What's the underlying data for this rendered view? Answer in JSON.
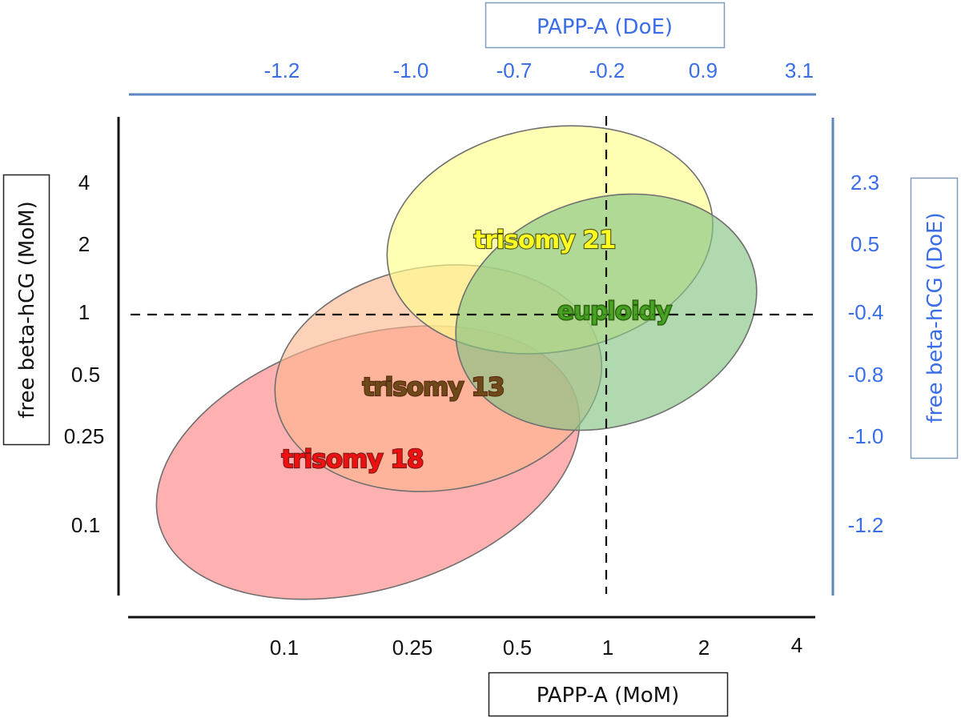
{
  "chart_data": {
    "type": "scatter",
    "subtype": "overlapping-ellipse-regions",
    "x_axis_bottom": {
      "title": "PAPP-A (MoM)",
      "scale": "log",
      "tick_labels": [
        "0.1",
        "0.25",
        "0.5",
        "1",
        "2",
        "4"
      ],
      "ticks": [
        0.1,
        0.25,
        0.5,
        1,
        2,
        4
      ]
    },
    "x_axis_top": {
      "title": "PAPP-A (DoE)",
      "tick_labels": [
        "-1.2",
        "-1.0",
        "-0.7",
        "-0.2",
        "0.9",
        "3.1"
      ]
    },
    "y_axis_left": {
      "title": "free beta-hCG (MoM)",
      "scale": "log",
      "tick_labels": [
        "4",
        "2",
        "1",
        "0.5",
        "0.25",
        "0.1"
      ],
      "ticks": [
        4,
        2,
        1,
        0.5,
        0.25,
        0.1
      ]
    },
    "y_axis_right": {
      "title": "free beta-hCG (DoE)",
      "tick_labels": [
        "2.3",
        "0.5",
        "-0.4",
        "-0.8",
        "-1.0",
        "-1.2"
      ]
    },
    "reference_lines": {
      "x": 1,
      "y": 1,
      "style": "dashed"
    },
    "regions": [
      {
        "name": "trisomy 18",
        "center_x_mom": 0.18,
        "center_y_mom": 0.19,
        "fill": "#ff8a8a",
        "label_color": "#ee1111",
        "label_outline": "#7a1a1a"
      },
      {
        "name": "trisomy 13",
        "center_x_mom": 0.29,
        "center_y_mom": 0.48,
        "fill": "#fdb48e",
        "label_color": "#6e4a1a",
        "label_outline": "#5a2a10"
      },
      {
        "name": "trisomy 21",
        "center_x_mom": 0.62,
        "center_y_mom": 2.1,
        "fill": "#ffff8c",
        "label_color": "#ffff22",
        "label_outline": "#4f4f10"
      },
      {
        "name": "euploidy",
        "center_x_mom": 1,
        "center_y_mom": 1,
        "fill": "#86c486",
        "label_color": "#3a9a14",
        "label_outline": "#2d5a10"
      }
    ],
    "grid": false,
    "legend": "none"
  },
  "colors": {
    "axis_black": "#111111",
    "axis_blue": "#5b86c0",
    "text_blue": "#3a6ee8",
    "box_border_blue": "#7f9cb8"
  }
}
